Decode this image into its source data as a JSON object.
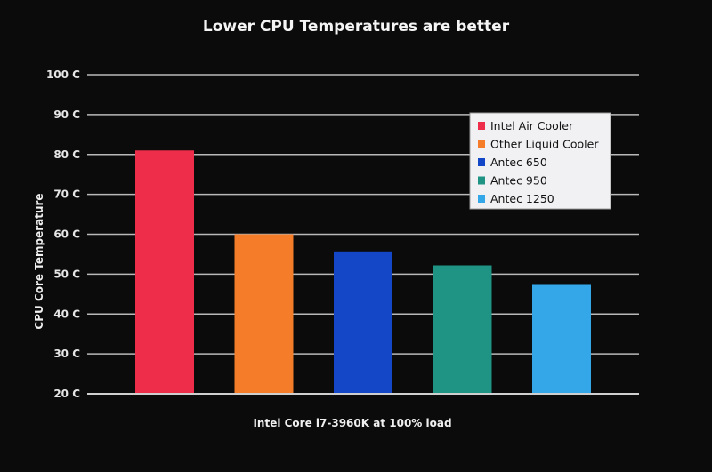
{
  "chart_data": {
    "type": "bar",
    "title": "Lower CPU Temperatures are better",
    "xlabel": "Intel Core i7-3960K at 100% load",
    "ylabel": "CPU Core Temperature",
    "ylim": [
      20,
      100
    ],
    "yticks": [
      "20 C",
      "30 C",
      "40 C",
      "50 C",
      "60 C",
      "70 C",
      "80 C",
      "90 C",
      "100 C"
    ],
    "ytick_values": [
      20,
      30,
      40,
      50,
      60,
      70,
      80,
      90,
      100
    ],
    "grid": true,
    "legend_position": "top-right",
    "series": [
      {
        "name": "Intel Air Cooler",
        "value": 81,
        "color": "#ee2d4a"
      },
      {
        "name": "Other Liquid Cooler",
        "value": 60,
        "color": "#f57d2a"
      },
      {
        "name": "Antec 650",
        "value": 55.7,
        "color": "#1446c8"
      },
      {
        "name": "Antec 950",
        "value": 52.2,
        "color": "#1f9484"
      },
      {
        "name": "Antec 1250",
        "value": 47.3,
        "color": "#33a7e8"
      }
    ]
  }
}
